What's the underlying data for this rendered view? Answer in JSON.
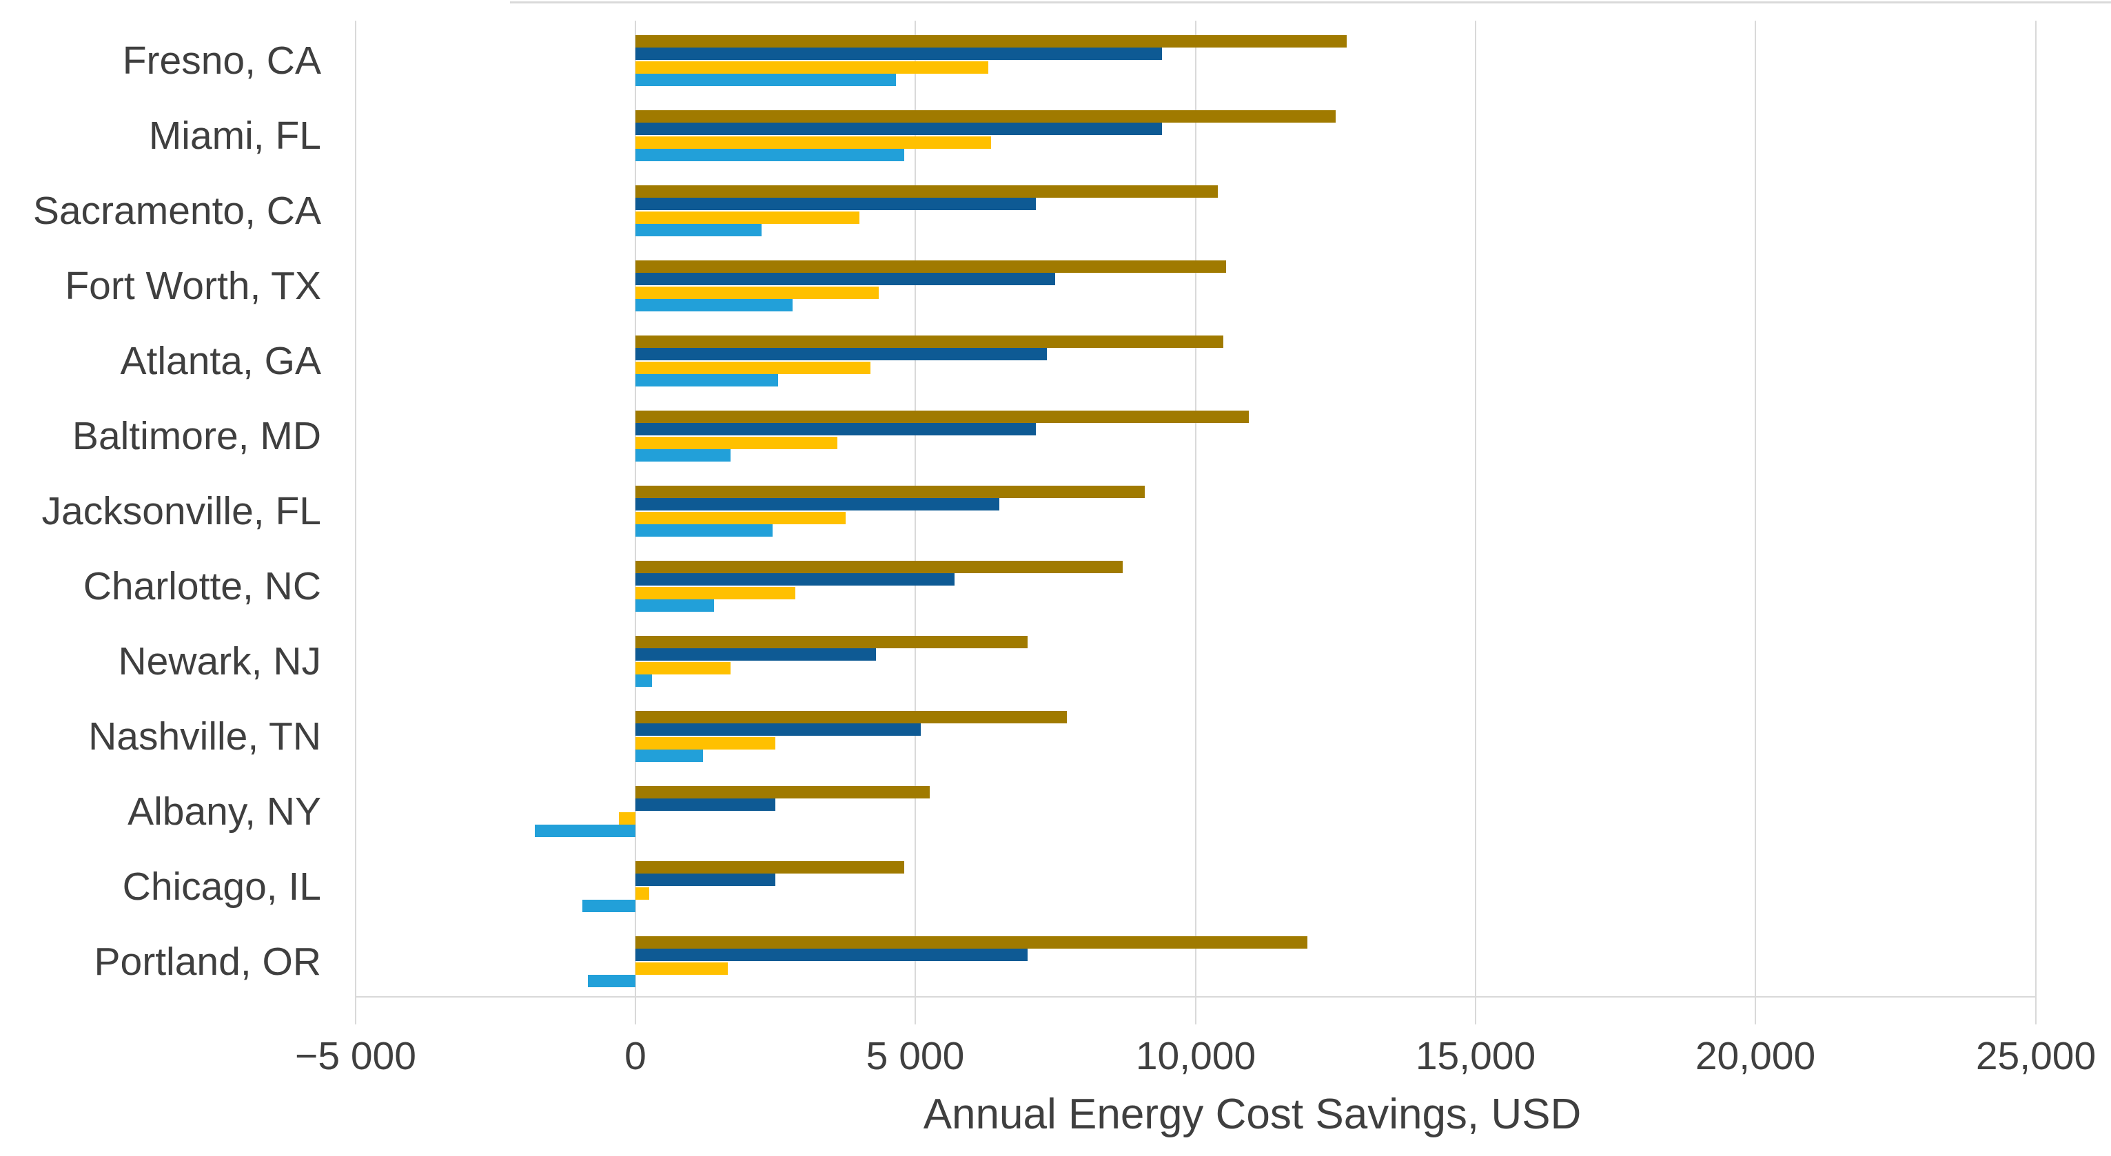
{
  "chart_data": {
    "type": "bar",
    "orientation": "horizontal",
    "title": "",
    "xlabel": "Annual Energy Cost Savings, USD",
    "ylabel": "",
    "xlim": [
      -5000,
      25000
    ],
    "grid": true,
    "legend": false,
    "categories": [
      "Fresno, CA",
      "Miami, FL",
      "Sacramento, CA",
      "Fort Worth, TX",
      "Atlanta, GA",
      "Baltimore, MD",
      "Jacksonville, FL",
      "Charlotte, NC",
      "Newark, NJ",
      "Nashville, TN",
      "Albany, NY",
      "Chicago, IL",
      "Portland, OR"
    ],
    "series": [
      {
        "name": "dark-gold",
        "color": "#A07A00",
        "values": [
          12700,
          12500,
          10400,
          10550,
          10500,
          10950,
          9100,
          8700,
          7000,
          7700,
          5250,
          4800,
          12000
        ]
      },
      {
        "name": "dark-blue",
        "color": "#0E5A94",
        "values": [
          9400,
          9400,
          7150,
          7500,
          7350,
          7150,
          6500,
          5700,
          4300,
          5100,
          2500,
          2500,
          7000
        ]
      },
      {
        "name": "gold",
        "color": "#FFC000",
        "values": [
          6300,
          6350,
          4000,
          4350,
          4200,
          3600,
          3750,
          2850,
          1700,
          2500,
          -300,
          250,
          1650
        ]
      },
      {
        "name": "light-blue",
        "color": "#22A0D9",
        "values": [
          4650,
          4800,
          2250,
          2800,
          2550,
          1700,
          2450,
          1400,
          300,
          1200,
          -1800,
          -950,
          -850
        ]
      }
    ],
    "x_ticks": [
      {
        "value": -5000,
        "label": "−5 000"
      },
      {
        "value": 0,
        "label": "0"
      },
      {
        "value": 5000,
        "label": "5 000"
      },
      {
        "value": 10000,
        "label": "10,000"
      },
      {
        "value": 15000,
        "label": "15,000"
      },
      {
        "value": 20000,
        "label": "20,000"
      },
      {
        "value": 25000,
        "label": "25,000"
      }
    ],
    "grid_color": "#D9D9D9",
    "axis_line_color": "#D9D9D9",
    "text_color": "#3F3F3F"
  }
}
